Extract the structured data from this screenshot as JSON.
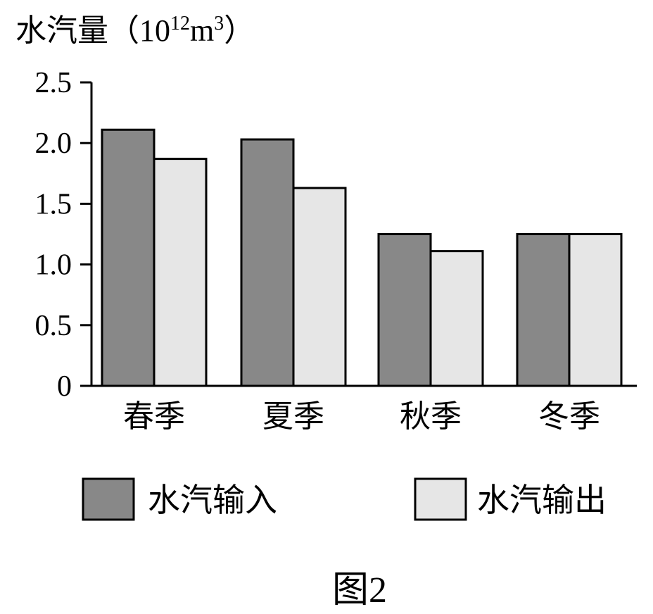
{
  "chart_data": {
    "type": "bar",
    "ylabel": "水汽量（10",
    "ylabel_exp1": "12",
    "ylabel_mid": "m",
    "ylabel_exp2": "3",
    "ylabel_end": "）",
    "categories": [
      "春季",
      "夏季",
      "秋季",
      "冬季"
    ],
    "series": [
      {
        "name": "水汽输入",
        "values": [
          2.11,
          2.03,
          1.25,
          1.25
        ],
        "color": "#888888"
      },
      {
        "name": "水汽输出",
        "values": [
          1.87,
          1.63,
          1.11,
          1.25
        ],
        "color": "#e6e6e6"
      }
    ],
    "ylim": [
      0,
      2.5
    ],
    "yticks": [
      "0",
      "0.5",
      "1.0",
      "1.5",
      "2.0",
      "2.5"
    ],
    "ytick_values": [
      0,
      0.5,
      1.0,
      1.5,
      2.0,
      2.5
    ],
    "legend_position": "bottom",
    "grid": false
  },
  "caption": "图2"
}
